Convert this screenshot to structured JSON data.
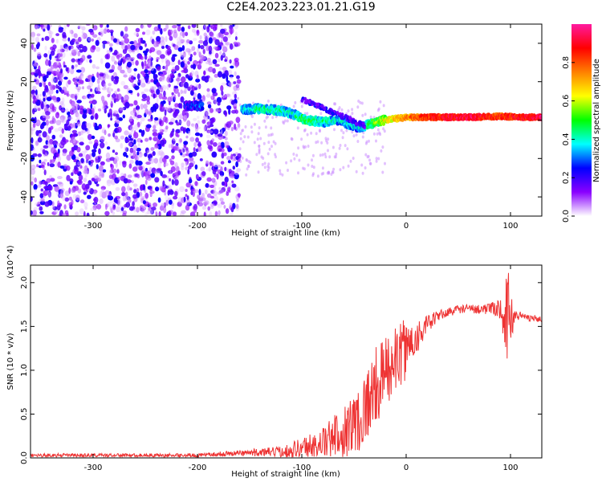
{
  "page": {
    "title": "C2E4.2023.223.01.21.G19"
  },
  "chart_data": [
    {
      "type": "heatmap",
      "xlabel": "Height of straight line (km)",
      "ylabel": "Frequency (Hz)",
      "xlim": [
        -360,
        130
      ],
      "ylim": [
        -50,
        50
      ],
      "xticks": [
        -300,
        -200,
        -100,
        0,
        100
      ],
      "xtick_labels": [
        "-300",
        "-200",
        "-100",
        "0",
        "100"
      ],
      "yticks": [
        -40,
        -20,
        0,
        20,
        40
      ],
      "ytick_labels": [
        "-40",
        "-20",
        "0",
        "20",
        "40"
      ],
      "colorbar": {
        "label": "Normalized spectral amplitude",
        "range": [
          0,
          1
        ],
        "ticks": [
          0.0,
          0.2,
          0.4,
          0.6,
          0.8
        ],
        "tick_labels": [
          "0.0",
          "0.2",
          "0.4",
          "0.6",
          "0.8"
        ],
        "colors": [
          "#ffffff",
          "#8a00ff",
          "#0000ff",
          "#00ffff",
          "#00ff00",
          "#ffff00",
          "#ff8000",
          "#ff0000",
          "#ff1aa0"
        ]
      },
      "ridge": [
        {
          "x": -210,
          "y": 7.5,
          "a": 0.25
        },
        {
          "x": -200,
          "y": 7.5,
          "a": 0.3
        },
        {
          "x": -155,
          "y": 5.5,
          "a": 0.4
        },
        {
          "x": -140,
          "y": 6,
          "a": 0.45
        },
        {
          "x": -120,
          "y": 5,
          "a": 0.45
        },
        {
          "x": -110,
          "y": 3.5,
          "a": 0.4
        },
        {
          "x": -95,
          "y": 0,
          "a": 0.5
        },
        {
          "x": -80,
          "y": -1,
          "a": 0.45
        },
        {
          "x": -65,
          "y": 0,
          "a": 0.4
        },
        {
          "x": -55,
          "y": -2,
          "a": 0.4
        },
        {
          "x": -45,
          "y": -4,
          "a": 0.35
        },
        {
          "x": -35,
          "y": -2,
          "a": 0.5
        },
        {
          "x": -20,
          "y": 0,
          "a": 0.65
        },
        {
          "x": 0,
          "y": 1.5,
          "a": 0.75
        },
        {
          "x": 30,
          "y": 1.5,
          "a": 0.9
        },
        {
          "x": 60,
          "y": 1.5,
          "a": 0.95
        },
        {
          "x": 90,
          "y": 2,
          "a": 0.85
        },
        {
          "x": 110,
          "y": 1.5,
          "a": 0.9
        },
        {
          "x": 130,
          "y": 1.5,
          "a": 0.95
        }
      ]
    },
    {
      "type": "line",
      "xlabel": "Height of straight line (km)",
      "ylabel": "SNR (10 * v/v)",
      "yscale_label": "(x10^4)",
      "xlim": [
        -360,
        130
      ],
      "ylim": [
        0,
        2.2
      ],
      "xticks": [
        -300,
        -200,
        -100,
        0,
        100
      ],
      "xtick_labels": [
        "-300",
        "-200",
        "-100",
        "0",
        "100"
      ],
      "yticks": [
        0.0,
        0.5,
        1.0,
        1.5,
        2.0
      ],
      "ytick_labels": [
        "0.0",
        "0.5",
        "1.0",
        "1.5",
        "2.0"
      ],
      "series": [
        {
          "color": "#ee3333",
          "envelope": [
            {
              "x": -360,
              "y": 0.03,
              "noise": 0.02
            },
            {
              "x": -250,
              "y": 0.03,
              "noise": 0.02
            },
            {
              "x": -200,
              "y": 0.03,
              "noise": 0.02
            },
            {
              "x": -170,
              "y": 0.05,
              "noise": 0.03
            },
            {
              "x": -150,
              "y": 0.06,
              "noise": 0.04
            },
            {
              "x": -120,
              "y": 0.07,
              "noise": 0.06
            },
            {
              "x": -100,
              "y": 0.12,
              "noise": 0.12
            },
            {
              "x": -80,
              "y": 0.17,
              "noise": 0.18
            },
            {
              "x": -60,
              "y": 0.3,
              "noise": 0.3
            },
            {
              "x": -45,
              "y": 0.45,
              "noise": 0.4
            },
            {
              "x": -30,
              "y": 0.8,
              "noise": 0.45
            },
            {
              "x": -15,
              "y": 1.05,
              "noise": 0.4
            },
            {
              "x": 0,
              "y": 1.25,
              "noise": 0.35
            },
            {
              "x": 15,
              "y": 1.45,
              "noise": 0.15
            },
            {
              "x": 30,
              "y": 1.62,
              "noise": 0.06
            },
            {
              "x": 50,
              "y": 1.7,
              "noise": 0.05
            },
            {
              "x": 80,
              "y": 1.7,
              "noise": 0.06
            },
            {
              "x": 90,
              "y": 1.7,
              "noise": 0.12
            },
            {
              "x": 98,
              "y": 1.6,
              "noise": 0.55
            },
            {
              "x": 105,
              "y": 1.63,
              "noise": 0.06
            },
            {
              "x": 130,
              "y": 1.58,
              "noise": 0.03
            }
          ]
        }
      ]
    }
  ]
}
